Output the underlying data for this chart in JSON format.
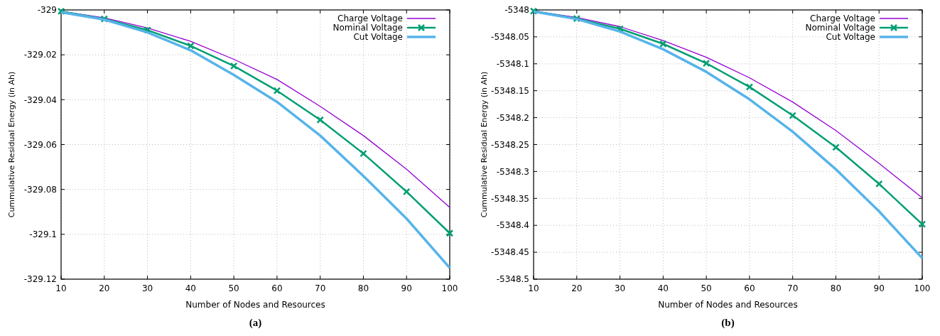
{
  "chart_data": [
    {
      "type": "line",
      "title": "(a)",
      "xlabel": "Number of Nodes and Resources",
      "ylabel": "Cummulative Residual Energy (in Ah)",
      "x": [
        10,
        20,
        30,
        40,
        50,
        60,
        70,
        80,
        90,
        100
      ],
      "xlim": [
        10,
        100
      ],
      "xticks": [
        10,
        20,
        30,
        40,
        50,
        60,
        70,
        80,
        90,
        100
      ],
      "ylim": [
        -329.12,
        -329
      ],
      "yticks": [
        -329.12,
        -329.1,
        -329.08,
        -329.06,
        -329.04,
        -329.02,
        -329
      ],
      "grid": true,
      "legend": "top right",
      "series": [
        {
          "name": "Charge Voltage",
          "color": "#9400d3",
          "marker": "none",
          "values": [
            -329.0006,
            -329.0035,
            -329.008,
            -329.014,
            -329.022,
            -329.031,
            -329.043,
            -329.056,
            -329.071,
            -329.088
          ]
        },
        {
          "name": "Nominal Voltage",
          "color": "#009e73",
          "marker": "cross",
          "values": [
            -329.0006,
            -329.004,
            -329.009,
            -329.016,
            -329.025,
            -329.036,
            -329.049,
            -329.064,
            -329.081,
            -329.0995
          ]
        },
        {
          "name": "Cut Voltage",
          "color": "#56b4e9",
          "marker": "none",
          "values": [
            -329.001,
            -329.0043,
            -329.01,
            -329.018,
            -329.029,
            -329.041,
            -329.056,
            -329.074,
            -329.093,
            -329.115
          ]
        }
      ]
    },
    {
      "type": "line",
      "title": "(b)",
      "xlabel": "Number of Nodes and Resources",
      "ylabel": "Cummulative Residual Energy (in Ah)",
      "x": [
        10,
        20,
        30,
        40,
        50,
        60,
        70,
        80,
        90,
        100
      ],
      "xlim": [
        10,
        100
      ],
      "xticks": [
        10,
        20,
        30,
        40,
        50,
        60,
        70,
        80,
        90,
        100
      ],
      "ylim": [
        -5348.5,
        -5348
      ],
      "yticks": [
        -5348.5,
        -5348.45,
        -5348.4,
        -5348.35,
        -5348.3,
        -5348.25,
        -5348.2,
        -5348.15,
        -5348.1,
        -5348.05,
        -5348
      ],
      "grid": true,
      "legend": "top right",
      "series": [
        {
          "name": "Charge Voltage",
          "color": "#9400d3",
          "marker": "none",
          "values": [
            -5348.002,
            -5348.014,
            -5348.031,
            -5348.057,
            -5348.088,
            -5348.126,
            -5348.171,
            -5348.224,
            -5348.285,
            -5348.349
          ]
        },
        {
          "name": "Nominal Voltage",
          "color": "#009e73",
          "marker": "cross",
          "values": [
            -5348.002,
            -5348.016,
            -5348.035,
            -5348.063,
            -5348.099,
            -5348.143,
            -5348.196,
            -5348.255,
            -5348.323,
            -5348.398
          ]
        },
        {
          "name": "Cut Voltage",
          "color": "#56b4e9",
          "marker": "none",
          "values": [
            -5348.003,
            -5348.017,
            -5348.04,
            -5348.073,
            -5348.115,
            -5348.166,
            -5348.226,
            -5348.296,
            -5348.374,
            -5348.461
          ]
        }
      ]
    }
  ]
}
